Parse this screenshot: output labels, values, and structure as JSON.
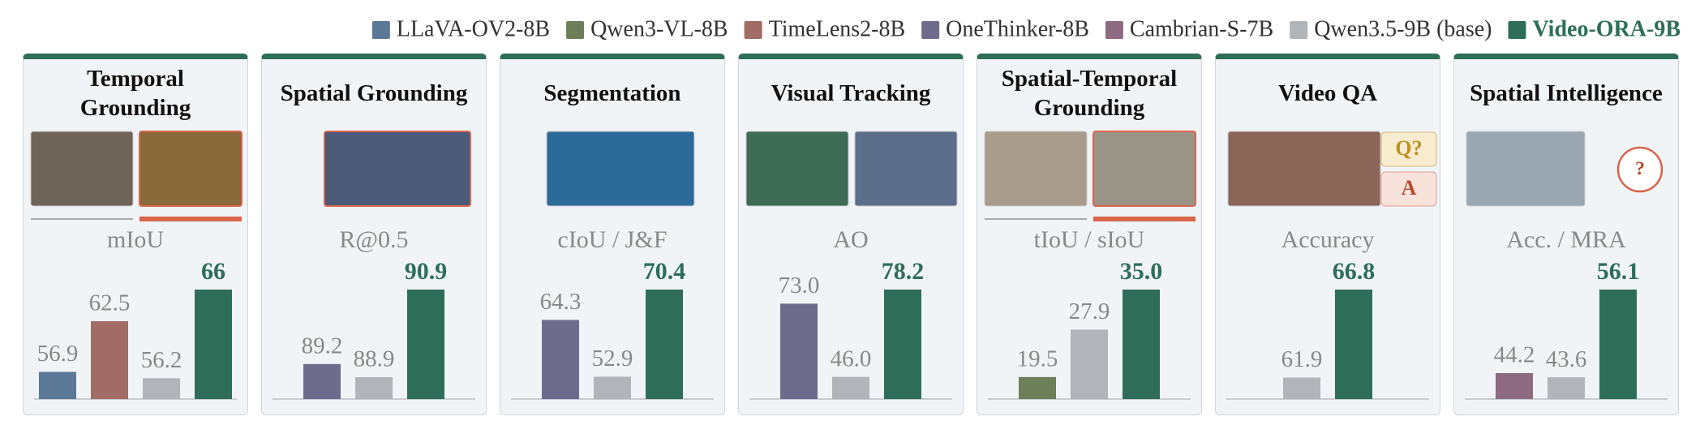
{
  "legend": [
    {
      "name": "LLaVA-OV2-8B",
      "color": "#5b7896"
    },
    {
      "name": "Qwen3-VL-8B",
      "color": "#6c7f58"
    },
    {
      "name": "TimeLens2-8B",
      "color": "#a16b66"
    },
    {
      "name": "OneThinker-8B",
      "color": "#6f6b8d"
    },
    {
      "name": "Cambrian-S-7B",
      "color": "#8c6b81"
    },
    {
      "name": "Qwen3.5-9B (base)",
      "color": "#b1b5ba"
    },
    {
      "name": "Video-ORA-9B",
      "color": "#2e6e58",
      "emphasis": true
    }
  ],
  "decorations": {
    "question": "Q?",
    "answer": "A",
    "mark": "?"
  },
  "chart_data": [
    {
      "type": "bar",
      "title": "Temporal Grounding",
      "metric": "mIoU",
      "values": [
        56.9,
        null,
        62.5,
        null,
        null,
        56.2,
        66.0
      ],
      "ylim": [
        53.9,
        66.0
      ]
    },
    {
      "type": "bar",
      "title": "Spatial Grounding",
      "metric": "R@0.5",
      "values": [
        null,
        null,
        null,
        89.2,
        null,
        88.9,
        90.9
      ],
      "ylim": [
        88.4,
        90.9
      ]
    },
    {
      "type": "bar",
      "title": "Segmentation",
      "metric": "cIoU / J&F",
      "values": [
        null,
        null,
        null,
        64.3,
        null,
        52.9,
        70.4
      ],
      "ylim": [
        48.4,
        70.4
      ]
    },
    {
      "type": "bar",
      "title": "Visual Tracking",
      "metric": "AO",
      "values": [
        null,
        null,
        null,
        73.0,
        null,
        46.0,
        78.2
      ],
      "value_labels": [
        null,
        null,
        null,
        "73.0",
        null,
        "46.0",
        "78.2"
      ],
      "ylim": [
        37.8,
        78.2
      ]
    },
    {
      "type": "bar",
      "title": "Spatial-Temporal Grounding",
      "metric": "tIoU / sIoU",
      "values": [
        null,
        19.5,
        null,
        null,
        null,
        27.9,
        35.0
      ],
      "value_labels": [
        null,
        "19.5",
        null,
        null,
        null,
        "27.9",
        "35.0"
      ],
      "ylim": [
        15.6,
        35.0
      ]
    },
    {
      "type": "bar",
      "title": "Video QA",
      "metric": "Accuracy",
      "values": [
        null,
        null,
        null,
        null,
        null,
        61.9,
        66.8
      ],
      "ylim": [
        60.7,
        66.8
      ]
    },
    {
      "type": "bar",
      "title": "Spatial Intelligence",
      "metric": "Acc. / MRA",
      "values": [
        null,
        null,
        null,
        null,
        44.2,
        43.6,
        56.1
      ],
      "ylim": [
        40.5,
        56.1
      ]
    }
  ]
}
